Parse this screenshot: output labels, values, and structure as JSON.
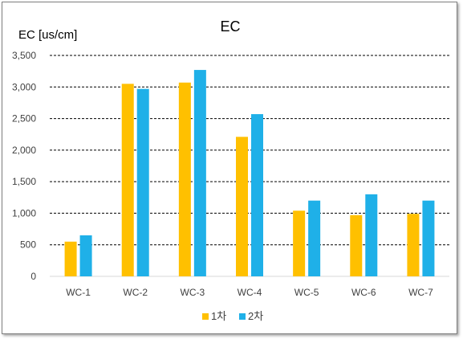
{
  "chart_data": {
    "type": "bar",
    "title": "EC",
    "ylabel": "EC [us/cm]",
    "xlabel": "",
    "categories": [
      "WC-1",
      "WC-2",
      "WC-3",
      "WC-4",
      "WC-5",
      "WC-6",
      "WC-7"
    ],
    "series": [
      {
        "name": "1차",
        "color": "#ffc000",
        "values": [
          550,
          3050,
          3070,
          2210,
          1040,
          970,
          990
        ]
      },
      {
        "name": "2차",
        "color": "#1fb0e8",
        "values": [
          650,
          2970,
          3270,
          2570,
          1200,
          1300,
          1200
        ]
      }
    ],
    "ylim": [
      0,
      3500
    ],
    "yticks": [
      0,
      500,
      1000,
      1500,
      2000,
      2500,
      3000,
      3500
    ],
    "ytick_labels": [
      "0",
      "500",
      "1,000",
      "1,500",
      "2,000",
      "2,500",
      "3,000",
      "3,500"
    ],
    "grid": true,
    "legend_position": "bottom"
  }
}
